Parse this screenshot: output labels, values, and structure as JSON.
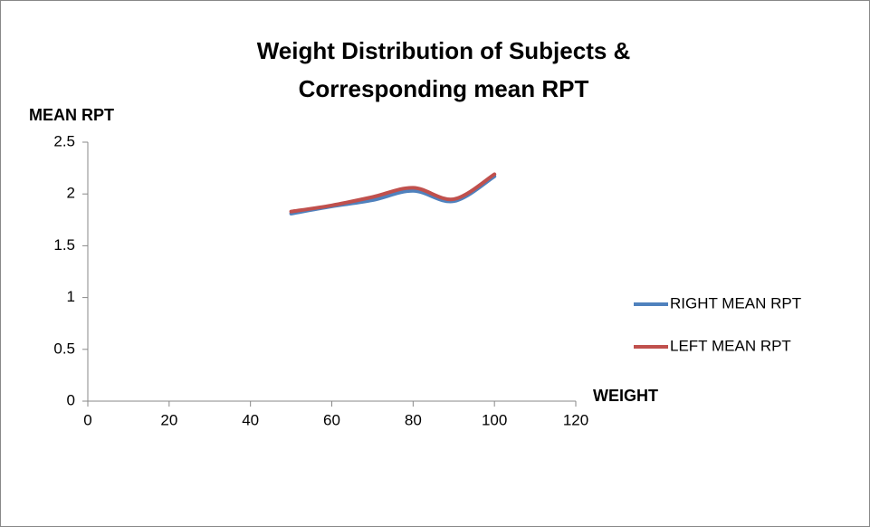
{
  "chart_data": {
    "type": "line",
    "title": [
      "Weight Distribution of Subjects &",
      "Corresponding mean RPT"
    ],
    "y_label": "MEAN  RPT",
    "x_label": "WEIGHT",
    "x": [
      50,
      60,
      70,
      80,
      90,
      100
    ],
    "series": [
      {
        "name": "RIGHT MEAN RPT",
        "color": "#4f81bd",
        "values": [
          1.81,
          1.88,
          1.94,
          2.03,
          1.93,
          2.17
        ]
      },
      {
        "name": "LEFT MEAN RPT",
        "color": "#c0504d",
        "values": [
          1.83,
          1.89,
          1.97,
          2.06,
          1.95,
          2.19
        ]
      }
    ],
    "xlim": [
      0,
      120
    ],
    "xticks": [
      0,
      20,
      40,
      60,
      80,
      100,
      120
    ],
    "ylim": [
      0,
      2.5
    ],
    "yticks": [
      0,
      0.5,
      1,
      1.5,
      2,
      2.5
    ],
    "legend": "right",
    "smooth": true
  }
}
